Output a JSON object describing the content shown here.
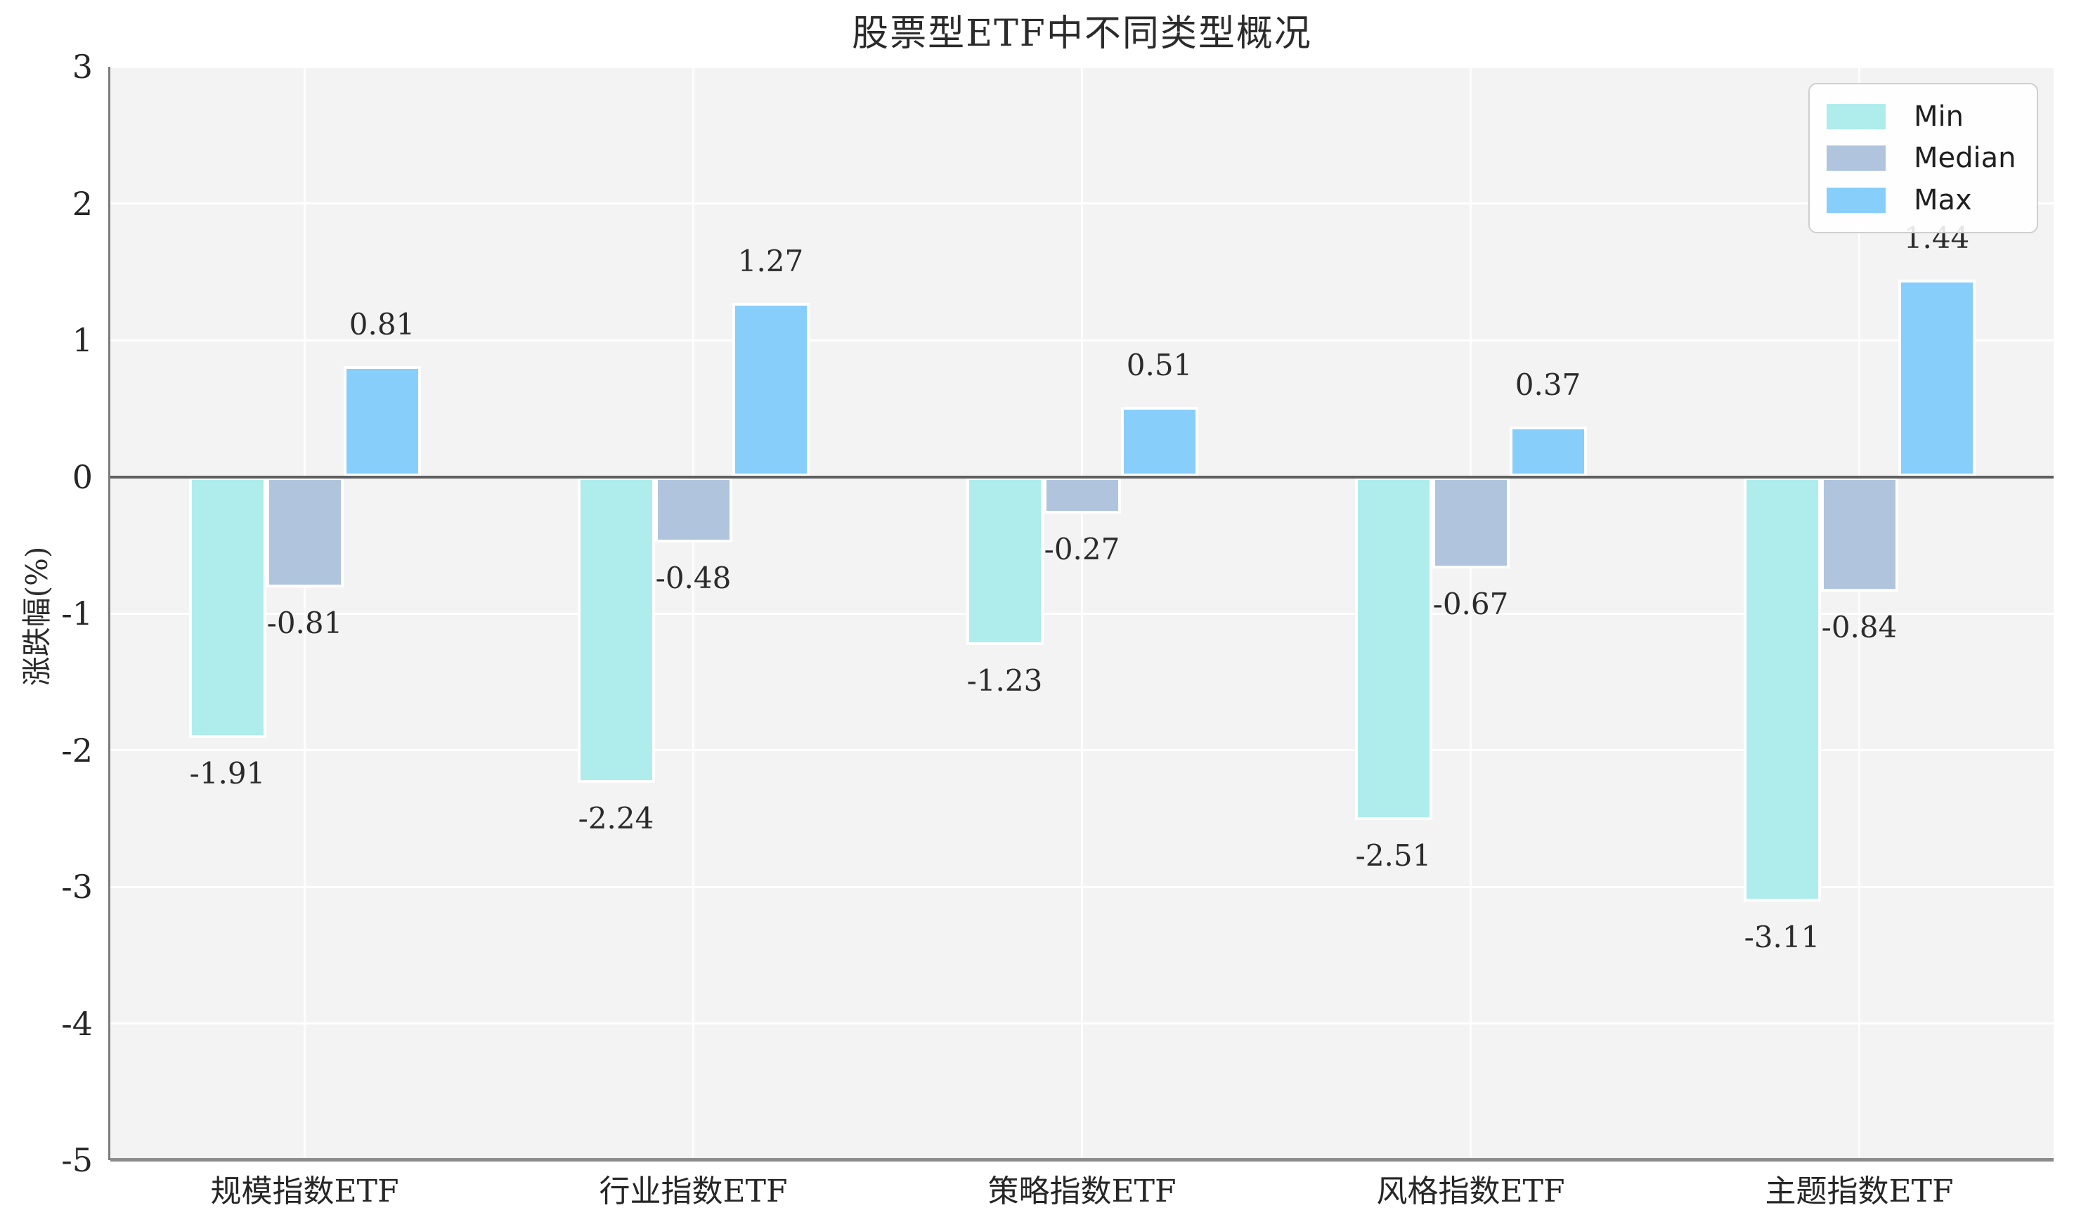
{
  "chart_data": {
    "type": "bar",
    "title": "股票型ETF中不同类型概况",
    "xlabel": "",
    "ylabel": "涨跌幅(%)",
    "categories": [
      "规模指数ETF",
      "行业指数ETF",
      "策略指数ETF",
      "风格指数ETF",
      "主题指数ETF"
    ],
    "series": [
      {
        "name": "Min",
        "color": "#aeedec",
        "values": [
          -1.91,
          -2.24,
          -1.23,
          -2.51,
          -3.11
        ]
      },
      {
        "name": "Median",
        "color": "#b0c4de",
        "values": [
          -0.81,
          -0.48,
          -0.27,
          -0.67,
          -0.84
        ]
      },
      {
        "name": "Max",
        "color": "#87cefa",
        "values": [
          0.81,
          1.27,
          0.51,
          0.37,
          1.44
        ]
      }
    ],
    "ylim": [
      -5,
      3
    ],
    "yticks": [
      3,
      2,
      1,
      0,
      -1,
      -2,
      -3,
      -4,
      -5
    ],
    "grid": true,
    "grid_color": "#ffffff",
    "plot_background": "#f3f3f3",
    "figure_background": "#ffffff",
    "zero_line_color": "#5f5f5f",
    "legend_position": "upper right",
    "bar_labels": true
  }
}
